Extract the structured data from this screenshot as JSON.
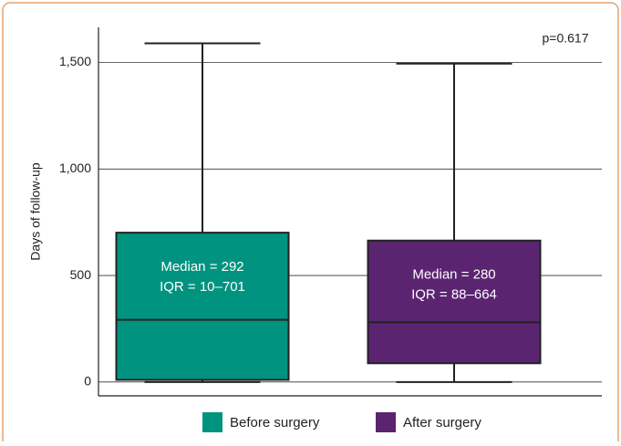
{
  "chart_data": {
    "type": "box",
    "ylabel": "Days of follow-up",
    "annotation": "p=0.617",
    "ylim": [
      -65,
      1665
    ],
    "yticks": [
      0,
      500,
      {
        "value": 1000,
        "label": "1,000"
      },
      {
        "value": 1500,
        "label": "1,500"
      }
    ],
    "grid": true,
    "legend": "bottom",
    "series": [
      {
        "name": "Before surgery",
        "color": "#00937f",
        "min": 0,
        "q1": 10,
        "median": 292,
        "q3": 701,
        "max": 1590,
        "labels": [
          "Median = 292",
          "IQR = 10–701"
        ]
      },
      {
        "name": "After surgery",
        "color": "#5b2470",
        "min": 0,
        "q1": 88,
        "median": 280,
        "q3": 664,
        "max": 1495,
        "labels": [
          "Median = 280",
          "IQR = 88–664"
        ]
      }
    ]
  }
}
